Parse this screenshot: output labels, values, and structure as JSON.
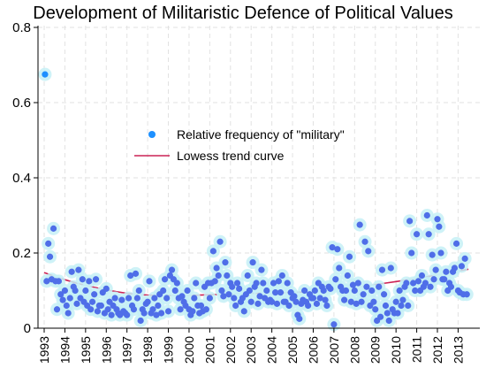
{
  "chart_data": {
    "type": "scatter",
    "title": "Development of Militaristic Defence of Political Values",
    "xlabel": "",
    "ylabel": "",
    "xlim": [
      1993.0,
      2013.75
    ],
    "ylim": [
      0,
      0.8
    ],
    "x_tick_labels": [
      "1993",
      "1994",
      "1995",
      "1996",
      "1997",
      "1998",
      "1999",
      "2000",
      "2001",
      "2002",
      "2003",
      "2004",
      "2005",
      "2006",
      "2007",
      "2008",
      "2009",
      "2010",
      "2011",
      "2012",
      "2013"
    ],
    "y_ticks": [
      0,
      0.2,
      0.4,
      0.6,
      0.8
    ],
    "y_tick_labels": [
      "0",
      "0.2",
      "0.4",
      "0.6",
      "0.8"
    ],
    "grid": true,
    "legend_position": "center",
    "colors": {
      "points": "#4f6ee8",
      "outlier": "#1e90ff",
      "halo": "#c6f0f6",
      "trend": "#cc2255",
      "grid": "#e2e2e2",
      "axis": "#000000"
    },
    "series": [
      {
        "name": "Relative frequency of \"military\"",
        "type": "scatter",
        "points": [
          [
            1993.04,
            0.675
          ],
          [
            1993.12,
            0.125
          ],
          [
            1993.2,
            0.225
          ],
          [
            1993.28,
            0.19
          ],
          [
            1993.36,
            0.13
          ],
          [
            1993.45,
            0.265
          ],
          [
            1993.55,
            0.125
          ],
          [
            1993.62,
            0.05
          ],
          [
            1993.7,
            0.125
          ],
          [
            1993.8,
            0.09
          ],
          [
            1993.9,
            0.075
          ],
          [
            1994.0,
            0.1
          ],
          [
            1994.08,
            0.06
          ],
          [
            1994.16,
            0.04
          ],
          [
            1994.25,
            0.08
          ],
          [
            1994.33,
            0.15
          ],
          [
            1994.42,
            0.11
          ],
          [
            1994.5,
            0.1
          ],
          [
            1994.58,
            0.065
          ],
          [
            1994.66,
            0.155
          ],
          [
            1994.75,
            0.08
          ],
          [
            1994.85,
            0.13
          ],
          [
            1994.92,
            0.07
          ],
          [
            1995.0,
            0.1
          ],
          [
            1995.08,
            0.06
          ],
          [
            1995.17,
            0.125
          ],
          [
            1995.25,
            0.05
          ],
          [
            1995.33,
            0.07
          ],
          [
            1995.42,
            0.09
          ],
          [
            1995.5,
            0.13
          ],
          [
            1995.58,
            0.045
          ],
          [
            1995.66,
            0.06
          ],
          [
            1995.75,
            0.06
          ],
          [
            1995.83,
            0.095
          ],
          [
            1995.92,
            0.04
          ],
          [
            1996.0,
            0.105
          ],
          [
            1996.08,
            0.05
          ],
          [
            1996.16,
            0.07
          ],
          [
            1996.25,
            0.035
          ],
          [
            1996.33,
            0.06
          ],
          [
            1996.42,
            0.08
          ],
          [
            1996.5,
            0.05
          ],
          [
            1996.58,
            0.04
          ],
          [
            1996.66,
            0.035
          ],
          [
            1996.75,
            0.075
          ],
          [
            1996.83,
            0.045
          ],
          [
            1996.92,
            0.04
          ],
          [
            1997.0,
            0.035
          ],
          [
            1997.08,
            0.08
          ],
          [
            1997.17,
            0.14
          ],
          [
            1997.25,
            0.06
          ],
          [
            1997.33,
            0.05
          ],
          [
            1997.42,
            0.145
          ],
          [
            1997.5,
            0.08
          ],
          [
            1997.58,
            0.1
          ],
          [
            1997.66,
            0.02
          ],
          [
            1997.75,
            0.05
          ],
          [
            1997.83,
            0.04
          ],
          [
            1997.92,
            0.065
          ],
          [
            1998.0,
            0.07
          ],
          [
            1998.08,
            0.125
          ],
          [
            1998.17,
            0.04
          ],
          [
            1998.25,
            0.05
          ],
          [
            1998.33,
            0.08
          ],
          [
            1998.42,
            0.035
          ],
          [
            1998.5,
            0.06
          ],
          [
            1998.58,
            0.09
          ],
          [
            1998.66,
            0.04
          ],
          [
            1998.75,
            0.1
          ],
          [
            1998.83,
            0.13
          ],
          [
            1998.92,
            0.08
          ],
          [
            1999.0,
            0.045
          ],
          [
            1999.08,
            0.14
          ],
          [
            1999.17,
            0.155
          ],
          [
            1999.25,
            0.13
          ],
          [
            1999.33,
            0.1
          ],
          [
            1999.42,
            0.12
          ],
          [
            1999.5,
            0.08
          ],
          [
            1999.58,
            0.05
          ],
          [
            1999.66,
            0.085
          ],
          [
            1999.75,
            0.07
          ],
          [
            1999.83,
            0.06
          ],
          [
            1999.92,
            0.1
          ],
          [
            2000.0,
            0.05
          ],
          [
            2000.08,
            0.035
          ],
          [
            2000.17,
            0.045
          ],
          [
            2000.25,
            0.08
          ],
          [
            2000.33,
            0.12
          ],
          [
            2000.42,
            0.06
          ],
          [
            2000.5,
            0.04
          ],
          [
            2000.58,
            0.06
          ],
          [
            2000.66,
            0.045
          ],
          [
            2000.75,
            0.11
          ],
          [
            2000.83,
            0.05
          ],
          [
            2000.92,
            0.12
          ],
          [
            2001.0,
            0.08
          ],
          [
            2001.08,
            0.12
          ],
          [
            2001.17,
            0.205
          ],
          [
            2001.25,
            0.125
          ],
          [
            2001.33,
            0.16
          ],
          [
            2001.42,
            0.14
          ],
          [
            2001.5,
            0.23
          ],
          [
            2001.58,
            0.1
          ],
          [
            2001.66,
            0.085
          ],
          [
            2001.75,
            0.175
          ],
          [
            2001.83,
            0.14
          ],
          [
            2001.92,
            0.09
          ],
          [
            2002.0,
            0.12
          ],
          [
            2002.08,
            0.11
          ],
          [
            2002.17,
            0.08
          ],
          [
            2002.25,
            0.06
          ],
          [
            2002.33,
            0.12
          ],
          [
            2002.42,
            0.105
          ],
          [
            2002.5,
            0.07
          ],
          [
            2002.58,
            0.08
          ],
          [
            2002.66,
            0.045
          ],
          [
            2002.75,
            0.09
          ],
          [
            2002.83,
            0.14
          ],
          [
            2002.92,
            0.1
          ],
          [
            2003.0,
            0.07
          ],
          [
            2003.08,
            0.175
          ],
          [
            2003.17,
            0.11
          ],
          [
            2003.25,
            0.12
          ],
          [
            2003.33,
            0.065
          ],
          [
            2003.42,
            0.085
          ],
          [
            2003.5,
            0.155
          ],
          [
            2003.58,
            0.12
          ],
          [
            2003.66,
            0.08
          ],
          [
            2003.75,
            0.1
          ],
          [
            2003.83,
            0.07
          ],
          [
            2003.92,
            0.075
          ],
          [
            2004.0,
            0.07
          ],
          [
            2004.08,
            0.12
          ],
          [
            2004.17,
            0.095
          ],
          [
            2004.25,
            0.065
          ],
          [
            2004.33,
            0.125
          ],
          [
            2004.42,
            0.095
          ],
          [
            2004.5,
            0.14
          ],
          [
            2004.58,
            0.07
          ],
          [
            2004.66,
            0.07
          ],
          [
            2004.75,
            0.12
          ],
          [
            2004.83,
            0.06
          ],
          [
            2004.92,
            0.095
          ],
          [
            2005.0,
            0.08
          ],
          [
            2005.08,
            0.085
          ],
          [
            2005.17,
            0.07
          ],
          [
            2005.25,
            0.035
          ],
          [
            2005.33,
            0.025
          ],
          [
            2005.42,
            0.065
          ],
          [
            2005.5,
            0.075
          ],
          [
            2005.58,
            0.1
          ],
          [
            2005.66,
            0.07
          ],
          [
            2005.75,
            0.06
          ],
          [
            2005.83,
            0.09
          ],
          [
            2005.92,
            0.08
          ],
          [
            2006.0,
            0.08
          ],
          [
            2006.08,
            0.1
          ],
          [
            2006.17,
            0.065
          ],
          [
            2006.25,
            0.12
          ],
          [
            2006.33,
            0.08
          ],
          [
            2006.42,
            0.11
          ],
          [
            2006.5,
            0.1
          ],
          [
            2006.58,
            0.075
          ],
          [
            2006.66,
            0.06
          ],
          [
            2006.75,
            0.11
          ],
          [
            2006.83,
            0.105
          ],
          [
            2006.92,
            0.215
          ],
          [
            2007.0,
            0.01
          ],
          [
            2007.08,
            0.13
          ],
          [
            2007.17,
            0.21
          ],
          [
            2007.25,
            0.16
          ],
          [
            2007.33,
            0.11
          ],
          [
            2007.42,
            0.1
          ],
          [
            2007.5,
            0.075
          ],
          [
            2007.58,
            0.1
          ],
          [
            2007.66,
            0.14
          ],
          [
            2007.75,
            0.19
          ],
          [
            2007.83,
            0.07
          ],
          [
            2007.92,
            0.115
          ],
          [
            2008.0,
            0.1
          ],
          [
            2008.08,
            0.065
          ],
          [
            2008.17,
            0.12
          ],
          [
            2008.25,
            0.275
          ],
          [
            2008.33,
            0.07
          ],
          [
            2008.42,
            0.09
          ],
          [
            2008.5,
            0.23
          ],
          [
            2008.58,
            0.11
          ],
          [
            2008.66,
            0.205
          ],
          [
            2008.75,
            0.06
          ],
          [
            2008.83,
            0.1
          ],
          [
            2008.92,
            0.07
          ],
          [
            2009.0,
            0.05
          ],
          [
            2009.08,
            0.02
          ],
          [
            2009.17,
            0.11
          ],
          [
            2009.25,
            0.03
          ],
          [
            2009.33,
            0.155
          ],
          [
            2009.42,
            0.09
          ],
          [
            2009.5,
            0.06
          ],
          [
            2009.58,
            0.04
          ],
          [
            2009.66,
            0.02
          ],
          [
            2009.75,
            0.16
          ],
          [
            2009.83,
            0.05
          ],
          [
            2009.92,
            0.04
          ],
          [
            2010.0,
            0.07
          ],
          [
            2010.08,
            0.04
          ],
          [
            2010.17,
            0.1
          ],
          [
            2010.25,
            0.06
          ],
          [
            2010.33,
            0.075
          ],
          [
            2010.42,
            0.11
          ],
          [
            2010.5,
            0.12
          ],
          [
            2010.58,
            0.06
          ],
          [
            2010.66,
            0.285
          ],
          [
            2010.75,
            0.2
          ],
          [
            2010.83,
            0.12
          ],
          [
            2010.92,
            0.1
          ],
          [
            2011.0,
            0.25
          ],
          [
            2011.08,
            0.125
          ],
          [
            2011.17,
            0.1
          ],
          [
            2011.25,
            0.14
          ],
          [
            2011.33,
            0.11
          ],
          [
            2011.42,
            0.12
          ],
          [
            2011.5,
            0.3
          ],
          [
            2011.58,
            0.25
          ],
          [
            2011.66,
            0.11
          ],
          [
            2011.75,
            0.195
          ],
          [
            2011.83,
            0.13
          ],
          [
            2011.92,
            0.155
          ],
          [
            2012.0,
            0.29
          ],
          [
            2012.08,
            0.27
          ],
          [
            2012.17,
            0.2
          ],
          [
            2012.25,
            0.13
          ],
          [
            2012.33,
            0.13
          ],
          [
            2012.42,
            0.15
          ],
          [
            2012.5,
            0.1
          ],
          [
            2012.58,
            0.12
          ],
          [
            2012.66,
            0.11
          ],
          [
            2012.75,
            0.15
          ],
          [
            2012.83,
            0.16
          ],
          [
            2012.92,
            0.225
          ],
          [
            2013.0,
            0.1
          ],
          [
            2013.08,
            0.095
          ],
          [
            2013.17,
            0.165
          ],
          [
            2013.25,
            0.09
          ],
          [
            2013.33,
            0.185
          ],
          [
            2013.42,
            0.09
          ]
        ]
      },
      {
        "name": "Lowess trend curve",
        "type": "line",
        "points": [
          [
            1993.0,
            0.148
          ],
          [
            1993.5,
            0.138
          ],
          [
            1994.0,
            0.129
          ],
          [
            1994.5,
            0.121
          ],
          [
            1995.0,
            0.114
          ],
          [
            1995.5,
            0.108
          ],
          [
            1996.0,
            0.102
          ],
          [
            1996.5,
            0.097
          ],
          [
            1997.0,
            0.093
          ],
          [
            1997.5,
            0.09
          ],
          [
            1998.0,
            0.088
          ],
          [
            1998.5,
            0.087
          ],
          [
            1999.0,
            0.087
          ],
          [
            1999.5,
            0.087
          ],
          [
            2000.0,
            0.087
          ],
          [
            2000.5,
            0.088
          ],
          [
            2001.0,
            0.089
          ],
          [
            2001.5,
            0.09
          ],
          [
            2002.0,
            0.091
          ],
          [
            2002.5,
            0.092
          ],
          [
            2003.0,
            0.093
          ],
          [
            2003.5,
            0.093
          ],
          [
            2004.0,
            0.093
          ],
          [
            2004.5,
            0.094
          ],
          [
            2005.0,
            0.095
          ],
          [
            2005.5,
            0.096
          ],
          [
            2006.0,
            0.098
          ],
          [
            2006.5,
            0.1
          ],
          [
            2007.0,
            0.103
          ],
          [
            2007.5,
            0.106
          ],
          [
            2008.0,
            0.109
          ],
          [
            2008.5,
            0.112
          ],
          [
            2009.0,
            0.116
          ],
          [
            2009.5,
            0.12
          ],
          [
            2010.0,
            0.124
          ],
          [
            2010.5,
            0.128
          ],
          [
            2011.0,
            0.132
          ],
          [
            2011.5,
            0.137
          ],
          [
            2012.0,
            0.142
          ],
          [
            2012.5,
            0.147
          ],
          [
            2013.0,
            0.152
          ],
          [
            2013.5,
            0.157
          ]
        ]
      }
    ],
    "legend": [
      {
        "label": "Relative frequency of \"military\"",
        "symbol": "dot"
      },
      {
        "label": "Lowess trend curve",
        "symbol": "line"
      }
    ]
  }
}
